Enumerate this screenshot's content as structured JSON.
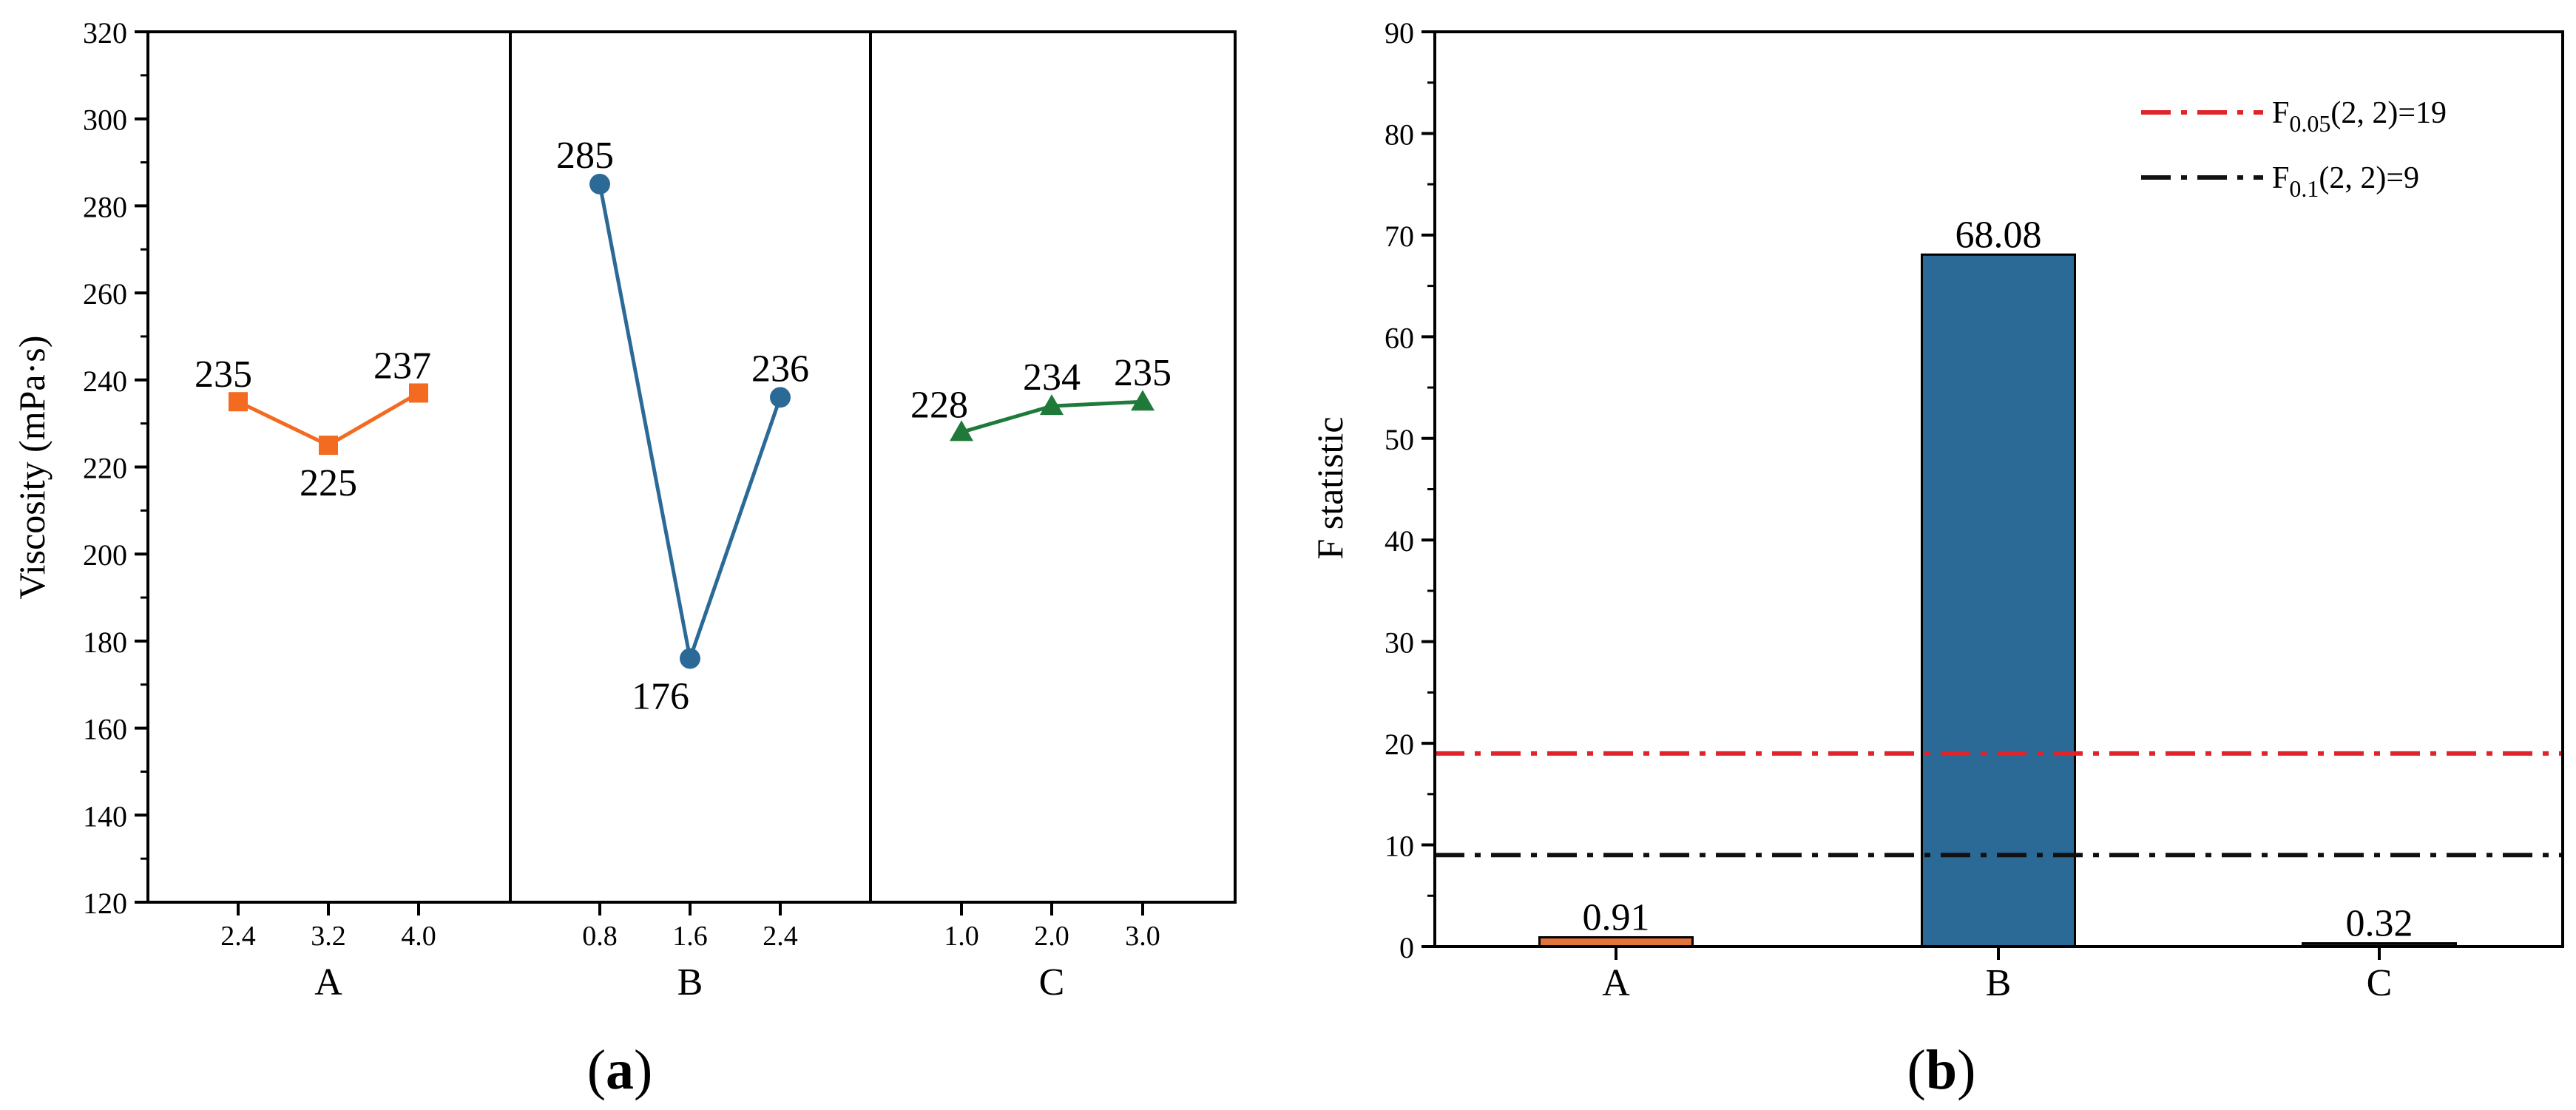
{
  "panels": {
    "a": {
      "label_open": "(",
      "label_letter": "a",
      "label_close": ")"
    },
    "b": {
      "label_open": "(",
      "label_letter": "b",
      "label_close": ")"
    }
  },
  "chart_data": [
    {
      "type": "line",
      "panel": "a",
      "ylabel": "Viscosity (mPa·s)",
      "ylim": [
        120,
        320
      ],
      "yticks": [
        120,
        140,
        160,
        180,
        200,
        220,
        240,
        260,
        280,
        300,
        320
      ],
      "grid": false,
      "groups": [
        {
          "label": "A",
          "x_ticks": [
            "2.4",
            "3.2",
            "4.0"
          ],
          "values": [
            235,
            225,
            237
          ],
          "data_labels": [
            "235",
            "225",
            "237"
          ],
          "marker": "square",
          "color": "#f26b21"
        },
        {
          "label": "B",
          "x_ticks": [
            "0.8",
            "1.6",
            "2.4"
          ],
          "values": [
            285,
            176,
            236
          ],
          "data_labels": [
            "285",
            "176",
            "236"
          ],
          "marker": "circle",
          "color": "#2b6a97"
        },
        {
          "label": "C",
          "x_ticks": [
            "1.0",
            "2.0",
            "3.0"
          ],
          "values": [
            228,
            234,
            235
          ],
          "data_labels": [
            "228",
            "234",
            "235"
          ],
          "marker": "triangle",
          "color": "#1f7a3a"
        }
      ]
    },
    {
      "type": "bar",
      "panel": "b",
      "ylabel": "F statistic",
      "ylim": [
        0,
        90
      ],
      "yticks": [
        0,
        10,
        20,
        30,
        40,
        50,
        60,
        70,
        80,
        90
      ],
      "grid": false,
      "categories": [
        "A",
        "B",
        "C"
      ],
      "values": [
        0.91,
        68.08,
        0.32
      ],
      "data_labels": [
        "0.91",
        "68.08",
        "0.32"
      ],
      "bar_colors": [
        "#e2733a",
        "#2b6a97",
        "#222222"
      ],
      "reference_lines": [
        {
          "y": 19,
          "color": "#e0242b",
          "label_main": "F",
          "label_sub": "0.05",
          "label_rest": "(2, 2)=19"
        },
        {
          "y": 9,
          "color": "#111111",
          "label_main": "F",
          "label_sub": "0.1",
          "label_rest": "(2, 2)=9"
        }
      ],
      "legend_position": "top-right"
    }
  ]
}
